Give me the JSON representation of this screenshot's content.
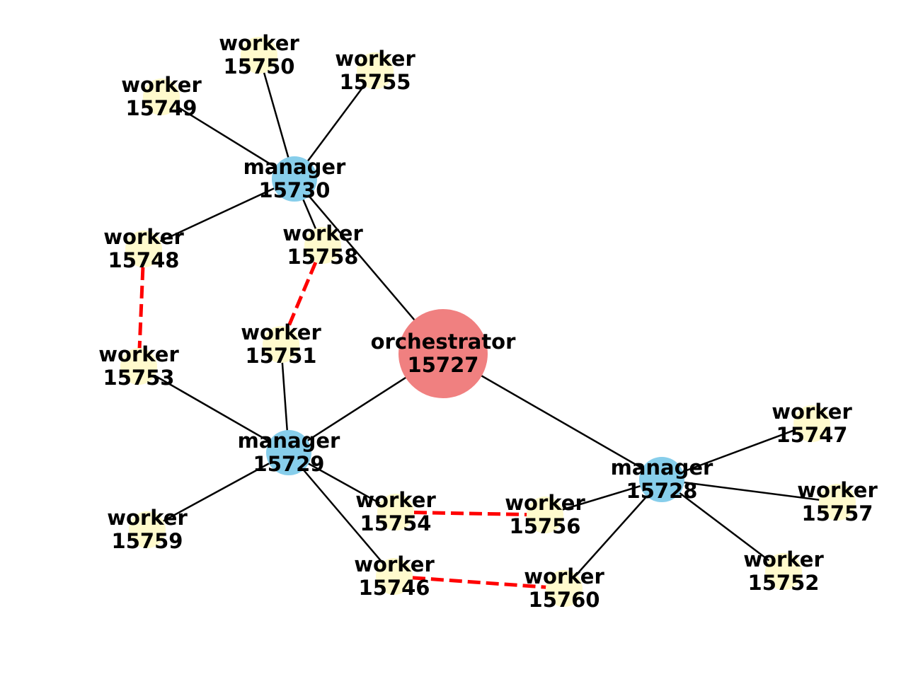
{
  "colors": {
    "orchestrator": "#f08080",
    "manager": "#87ceeb",
    "worker": "#fffacd",
    "tree_edge": "#000000",
    "cross_edge": "#ff0000",
    "label": "#000000"
  },
  "nodes": [
    {
      "id": "o15727",
      "kind": "orchestrator",
      "line1": "orchestrator",
      "line2": "15727"
    },
    {
      "id": "m15730",
      "kind": "manager",
      "line1": "manager",
      "line2": "15730"
    },
    {
      "id": "m15729",
      "kind": "manager",
      "line1": "manager",
      "line2": "15729"
    },
    {
      "id": "m15728",
      "kind": "manager",
      "line1": "manager",
      "line2": "15728"
    },
    {
      "id": "w15750",
      "kind": "worker",
      "line1": "worker",
      "line2": "15750"
    },
    {
      "id": "w15755",
      "kind": "worker",
      "line1": "worker",
      "line2": "15755"
    },
    {
      "id": "w15749",
      "kind": "worker",
      "line1": "worker",
      "line2": "15749"
    },
    {
      "id": "w15748",
      "kind": "worker",
      "line1": "worker",
      "line2": "15748"
    },
    {
      "id": "w15758",
      "kind": "worker",
      "line1": "worker",
      "line2": "15758"
    },
    {
      "id": "w15751",
      "kind": "worker",
      "line1": "worker",
      "line2": "15751"
    },
    {
      "id": "w15753",
      "kind": "worker",
      "line1": "worker",
      "line2": "15753"
    },
    {
      "id": "w15754",
      "kind": "worker",
      "line1": "worker",
      "line2": "15754"
    },
    {
      "id": "w15756",
      "kind": "worker",
      "line1": "worker",
      "line2": "15756"
    },
    {
      "id": "w15759",
      "kind": "worker",
      "line1": "worker",
      "line2": "15759"
    },
    {
      "id": "w15746",
      "kind": "worker",
      "line1": "worker",
      "line2": "15746"
    },
    {
      "id": "w15760",
      "kind": "worker",
      "line1": "worker",
      "line2": "15760"
    },
    {
      "id": "w15747",
      "kind": "worker",
      "line1": "worker",
      "line2": "15747"
    },
    {
      "id": "w15757",
      "kind": "worker",
      "line1": "worker",
      "line2": "15757"
    },
    {
      "id": "w15752",
      "kind": "worker",
      "line1": "worker",
      "line2": "15752"
    }
  ],
  "edges": [
    {
      "from": "o15727",
      "to": "m15730",
      "style": "solid"
    },
    {
      "from": "o15727",
      "to": "m15729",
      "style": "solid"
    },
    {
      "from": "o15727",
      "to": "m15728",
      "style": "solid"
    },
    {
      "from": "m15730",
      "to": "w15750",
      "style": "solid"
    },
    {
      "from": "m15730",
      "to": "w15755",
      "style": "solid"
    },
    {
      "from": "m15730",
      "to": "w15749",
      "style": "solid"
    },
    {
      "from": "m15730",
      "to": "w15748",
      "style": "solid"
    },
    {
      "from": "m15730",
      "to": "w15758",
      "style": "solid"
    },
    {
      "from": "m15729",
      "to": "w15751",
      "style": "solid"
    },
    {
      "from": "m15729",
      "to": "w15753",
      "style": "solid"
    },
    {
      "from": "m15729",
      "to": "w15754",
      "style": "solid"
    },
    {
      "from": "m15729",
      "to": "w15759",
      "style": "solid"
    },
    {
      "from": "m15729",
      "to": "w15746",
      "style": "solid"
    },
    {
      "from": "m15728",
      "to": "w15747",
      "style": "solid"
    },
    {
      "from": "m15728",
      "to": "w15757",
      "style": "solid"
    },
    {
      "from": "m15728",
      "to": "w15752",
      "style": "solid"
    },
    {
      "from": "m15728",
      "to": "w15756",
      "style": "solid"
    },
    {
      "from": "m15728",
      "to": "w15760",
      "style": "solid"
    },
    {
      "from": "w15748",
      "to": "w15753",
      "style": "dashed"
    },
    {
      "from": "w15758",
      "to": "w15751",
      "style": "dashed"
    },
    {
      "from": "w15754",
      "to": "w15756",
      "style": "dashed"
    },
    {
      "from": "w15746",
      "to": "w15760",
      "style": "dashed"
    }
  ]
}
